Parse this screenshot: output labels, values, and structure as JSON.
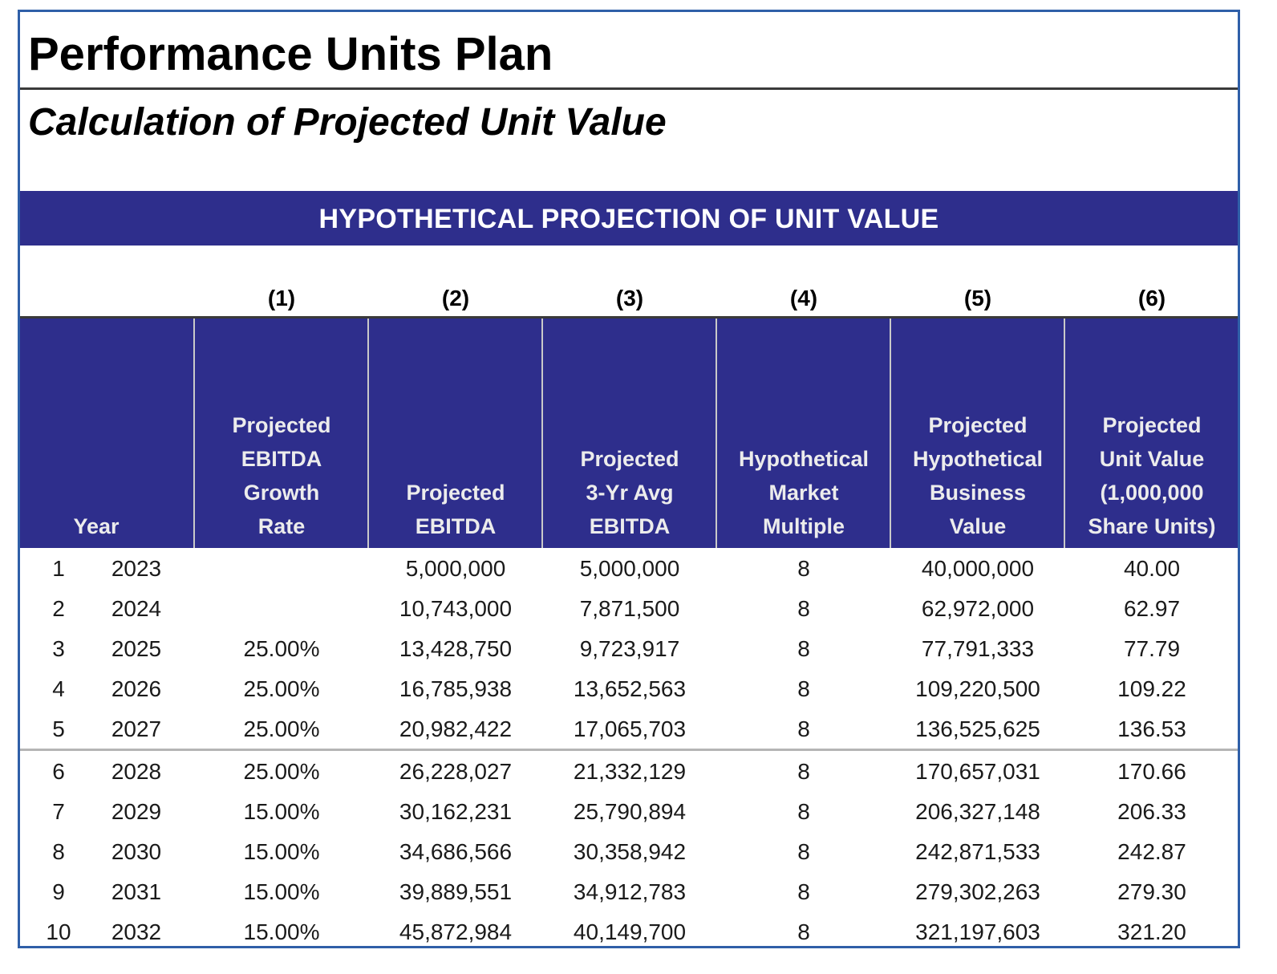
{
  "title": "Performance Units Plan",
  "subtitle": "Calculation of Projected Unit Value",
  "banner": "HYPOTHETICAL PROJECTION OF UNIT VALUE",
  "column_numbers": [
    "(1)",
    "(2)",
    "(3)",
    "(4)",
    "(5)",
    "(6)"
  ],
  "headers": {
    "year": "Year",
    "col1": [
      "Projected",
      "EBITDA",
      "Growth",
      "Rate"
    ],
    "col2": [
      "Projected",
      "EBITDA"
    ],
    "col3": [
      "Projected",
      "3-Yr Avg",
      "EBITDA"
    ],
    "col4": [
      "Hypothetical",
      "Market",
      "Multiple"
    ],
    "col5": [
      "Projected",
      "Hypothetical",
      "Business",
      "Value"
    ],
    "col6": [
      "Projected",
      "Unit Value",
      "(1,000,000",
      "Share Units)"
    ]
  },
  "rows": [
    {
      "idx": "1",
      "year": "2023",
      "growth": "",
      "ebitda": "5,000,000",
      "avg": "5,000,000",
      "multiple": "8",
      "business_value": "40,000,000",
      "unit_value": "40.00"
    },
    {
      "idx": "2",
      "year": "2024",
      "growth": "",
      "ebitda": "10,743,000",
      "avg": "7,871,500",
      "multiple": "8",
      "business_value": "62,972,000",
      "unit_value": "62.97"
    },
    {
      "idx": "3",
      "year": "2025",
      "growth": "25.00%",
      "ebitda": "13,428,750",
      "avg": "9,723,917",
      "multiple": "8",
      "business_value": "77,791,333",
      "unit_value": "77.79"
    },
    {
      "idx": "4",
      "year": "2026",
      "growth": "25.00%",
      "ebitda": "16,785,938",
      "avg": "13,652,563",
      "multiple": "8",
      "business_value": "109,220,500",
      "unit_value": "109.22"
    },
    {
      "idx": "5",
      "year": "2027",
      "growth": "25.00%",
      "ebitda": "20,982,422",
      "avg": "17,065,703",
      "multiple": "8",
      "business_value": "136,525,625",
      "unit_value": "136.53"
    },
    {
      "idx": "6",
      "year": "2028",
      "growth": "25.00%",
      "ebitda": "26,228,027",
      "avg": "21,332,129",
      "multiple": "8",
      "business_value": "170,657,031",
      "unit_value": "170.66"
    },
    {
      "idx": "7",
      "year": "2029",
      "growth": "15.00%",
      "ebitda": "30,162,231",
      "avg": "25,790,894",
      "multiple": "8",
      "business_value": "206,327,148",
      "unit_value": "206.33"
    },
    {
      "idx": "8",
      "year": "2030",
      "growth": "15.00%",
      "ebitda": "34,686,566",
      "avg": "30,358,942",
      "multiple": "8",
      "business_value": "242,871,533",
      "unit_value": "242.87"
    },
    {
      "idx": "9",
      "year": "2031",
      "growth": "15.00%",
      "ebitda": "39,889,551",
      "avg": "34,912,783",
      "multiple": "8",
      "business_value": "279,302,263",
      "unit_value": "279.30"
    },
    {
      "idx": "10",
      "year": "2032",
      "growth": "15.00%",
      "ebitda": "45,872,984",
      "avg": "40,149,700",
      "multiple": "8",
      "business_value": "321,197,603",
      "unit_value": "321.20"
    }
  ]
}
